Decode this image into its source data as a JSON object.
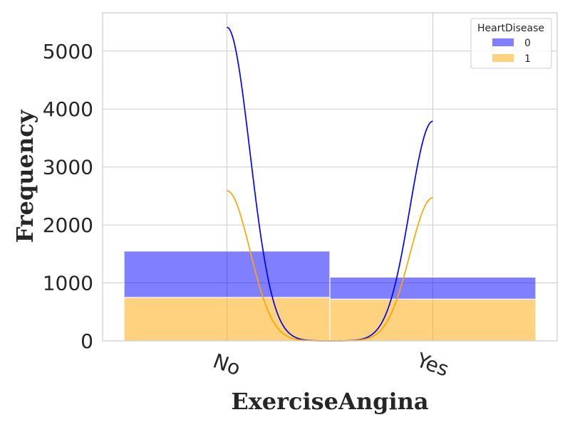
{
  "chart_data": {
    "type": "bar",
    "stacked": true,
    "categories": [
      "No",
      "Yes"
    ],
    "series": [
      {
        "name": "0",
        "values": [
          800,
          380
        ],
        "color": "#0000ff"
      },
      {
        "name": "1",
        "values": [
          750,
          720
        ],
        "color": "#ffa500"
      }
    ],
    "kde": [
      {
        "series": "0",
        "color": "#0000ff",
        "peaks": [
          5410,
          3790
        ]
      },
      {
        "series": "1",
        "color": "#ffa500",
        "peaks": [
          2590,
          2470
        ]
      }
    ],
    "xlabel": "ExerciseAngina",
    "ylabel": "Frequency",
    "ylim": [
      0,
      5660
    ],
    "yticks": [
      0,
      1000,
      2000,
      3000,
      4000,
      5000
    ],
    "grid": true,
    "legend": {
      "title": "HeartDisease",
      "placement": "top-right"
    }
  }
}
